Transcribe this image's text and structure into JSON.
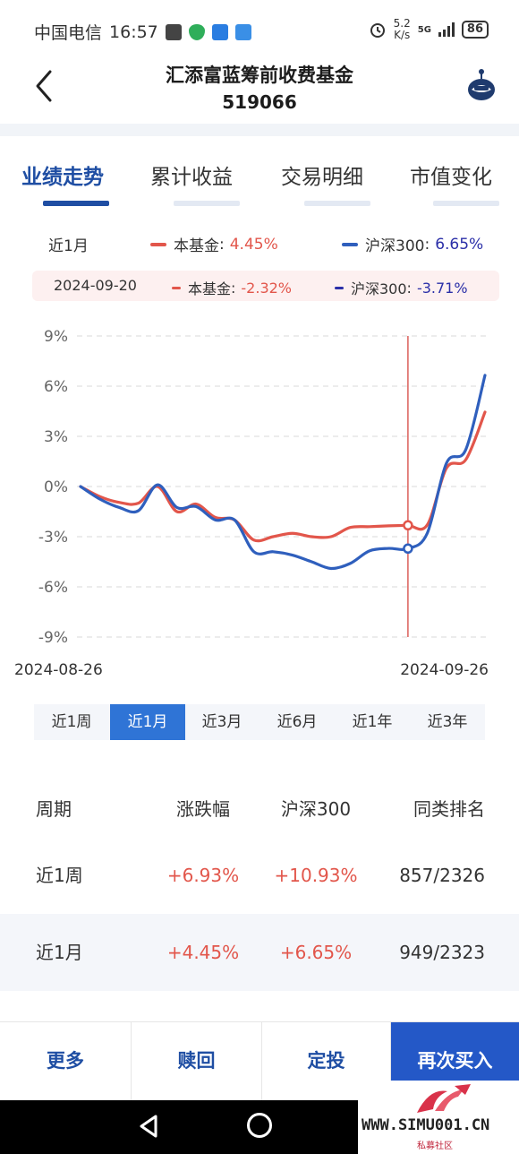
{
  "status_bar": {
    "carrier": "中国电信",
    "time": "16:57",
    "net_speed_value": "5.2",
    "net_speed_unit": "K/s",
    "signal": "5G",
    "battery": "86"
  },
  "header": {
    "title": "汇添富蓝筹前收费基金",
    "code": "519066"
  },
  "tabs": [
    {
      "label": "业绩走势",
      "active": true
    },
    {
      "label": "累计收益",
      "active": false
    },
    {
      "label": "交易明细",
      "active": false
    },
    {
      "label": "市值变化",
      "active": false
    }
  ],
  "legend": {
    "period": "近1月",
    "fund_name": "本基金",
    "fund_value": "4.45%",
    "index_name": "沪深300",
    "index_value": "6.65%"
  },
  "cursor_legend": {
    "date": "2024-09-20",
    "fund_name": "本基金",
    "fund_value": "-2.32%",
    "index_name": "沪深300",
    "index_value": "-3.71%"
  },
  "colors": {
    "fund": "#e2564b",
    "index": "#2f5fbd",
    "accent": "#1f4ea3",
    "primary_button": "#2458c7"
  },
  "chart_data": {
    "type": "line",
    "xlabel_start": "2024-08-26",
    "xlabel_end": "2024-09-26",
    "y_ticks": [
      "9%",
      "6%",
      "3%",
      "0%",
      "-3%",
      "-6%",
      "-9%"
    ],
    "ylim": [
      -9,
      9
    ],
    "grid": true,
    "cursor_index": 17,
    "series": [
      {
        "name": "本基金",
        "values": [
          0,
          -0.6,
          -0.95,
          -1.0,
          0.0,
          -1.5,
          -1.05,
          -1.85,
          -2.0,
          -3.2,
          -3.0,
          -2.8,
          -3.0,
          -3.0,
          -2.45,
          -2.4,
          -2.35,
          -2.32,
          -2.3,
          1.1,
          1.6,
          4.45
        ]
      },
      {
        "name": "沪深300",
        "values": [
          0,
          -0.75,
          -1.25,
          -1.45,
          0.1,
          -1.25,
          -1.2,
          -2.0,
          -2.0,
          -3.9,
          -3.9,
          -4.1,
          -4.5,
          -4.9,
          -4.6,
          -3.85,
          -3.7,
          -3.71,
          -2.8,
          1.4,
          2.2,
          6.65
        ]
      }
    ]
  },
  "period_buttons": [
    {
      "label": "近1周",
      "active": false
    },
    {
      "label": "近1月",
      "active": true
    },
    {
      "label": "近3月",
      "active": false
    },
    {
      "label": "近6月",
      "active": false
    },
    {
      "label": "近1年",
      "active": false
    },
    {
      "label": "近3年",
      "active": false
    }
  ],
  "table": {
    "headers": [
      "周期",
      "涨跌幅",
      "沪深300",
      "同类排名"
    ],
    "rows": [
      [
        "近1周",
        "+6.93%",
        "+10.93%",
        "857/2326"
      ],
      [
        "近1月",
        "+4.45%",
        "+6.65%",
        "949/2323"
      ]
    ]
  },
  "actions": [
    "更多",
    "赎回",
    "定投",
    "再次买入"
  ],
  "watermark": {
    "text": "WWW.SIMU001.CN",
    "sub": "私募社区"
  }
}
